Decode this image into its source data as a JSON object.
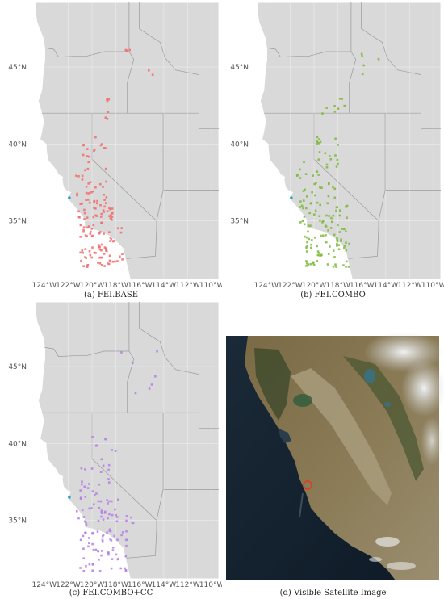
{
  "colors": {
    "base": "#f26c6c",
    "combo": "#7cb83a",
    "combocc": "#b57ee6",
    "marker": "#2aa4c4",
    "land": "#d9d9d9",
    "sea": "#ffffff"
  },
  "axes": {
    "lat_labels": [
      "45°N",
      "40°N",
      "35°N"
    ],
    "lon_labels": [
      "124°W",
      "122°W",
      "120°W",
      "118°W",
      "116°W",
      "114°W",
      "112°W",
      "110°W"
    ]
  },
  "panels": {
    "a": {
      "caption": "(a) FEI.BASE"
    },
    "b": {
      "caption": "(b) FEI.COMBO"
    },
    "c": {
      "caption": "(c) FEI.COMBO+CC"
    },
    "d": {
      "caption": "(d) Visible Satellite Image"
    }
  }
}
